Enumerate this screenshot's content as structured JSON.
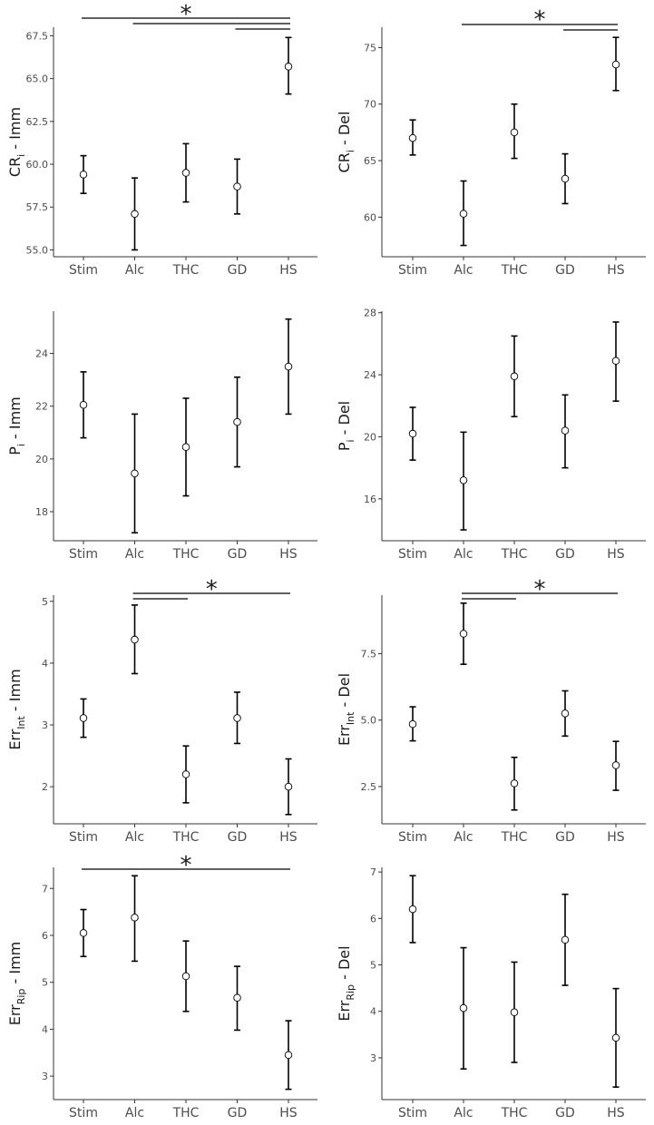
{
  "chart_data": [
    {
      "type": "scatter",
      "ylabel": {
        "main": "CR",
        "sub": "i",
        "suffix": " - Imm"
      },
      "categories": [
        "Stim",
        "Alc",
        "THC",
        "GD",
        "HS"
      ],
      "values": [
        59.4,
        57.1,
        59.5,
        58.7,
        65.7
      ],
      "lower": [
        58.3,
        55.0,
        57.8,
        57.1,
        64.1
      ],
      "upper": [
        60.5,
        59.2,
        61.2,
        60.3,
        67.4
      ],
      "ylim": [
        54.6,
        68.0
      ],
      "yticks": [
        55.0,
        57.5,
        60.0,
        62.5,
        65.0,
        67.5
      ],
      "ytick_labels": [
        "55.0",
        "57.5",
        "60.0",
        "62.5",
        "65.0",
        "67.5"
      ],
      "brackets": [
        [
          "Stim",
          "HS"
        ],
        [
          "Alc",
          "HS"
        ],
        [
          "GD",
          "HS"
        ]
      ],
      "significance_label": "*"
    },
    {
      "type": "scatter",
      "ylabel": {
        "main": "CR",
        "sub": "i",
        "suffix": " - Del"
      },
      "categories": [
        "Stim",
        "Alc",
        "THC",
        "GD",
        "HS"
      ],
      "values": [
        67.0,
        60.3,
        67.5,
        63.4,
        73.5
      ],
      "lower": [
        65.5,
        57.5,
        65.2,
        61.2,
        71.2
      ],
      "upper": [
        68.6,
        63.2,
        70.0,
        65.6,
        75.9
      ],
      "ylim": [
        56.5,
        76.8
      ],
      "yticks": [
        60,
        65,
        70,
        75
      ],
      "ytick_labels": [
        "60",
        "65",
        "70",
        "75"
      ],
      "brackets": [
        [
          "Alc",
          "HS"
        ],
        [
          "GD",
          "HS"
        ]
      ],
      "significance_label": "*"
    },
    {
      "type": "scatter",
      "ylabel": {
        "main": "P",
        "sub": "i",
        "suffix": " - Imm"
      },
      "categories": [
        "Stim",
        "Alc",
        "THC",
        "GD",
        "HS"
      ],
      "values": [
        22.05,
        19.45,
        20.45,
        21.4,
        23.5
      ],
      "lower": [
        20.8,
        17.2,
        18.6,
        19.7,
        21.7
      ],
      "upper": [
        23.3,
        21.7,
        22.3,
        23.1,
        25.3
      ],
      "ylim": [
        16.9,
        25.6
      ],
      "yticks": [
        18,
        20,
        22,
        24
      ],
      "ytick_labels": [
        "18",
        "20",
        "22",
        "24"
      ],
      "brackets": [],
      "significance_label": ""
    },
    {
      "type": "scatter",
      "ylabel": {
        "main": "P",
        "sub": "i",
        "suffix": " - Del"
      },
      "categories": [
        "Stim",
        "Alc",
        "THC",
        "GD",
        "HS"
      ],
      "values": [
        20.2,
        17.2,
        23.9,
        20.4,
        24.9
      ],
      "lower": [
        18.5,
        14.0,
        21.3,
        18.0,
        22.3
      ],
      "upper": [
        21.9,
        20.3,
        26.5,
        22.7,
        27.4
      ],
      "ylim": [
        13.3,
        28.1
      ],
      "yticks": [
        16,
        20,
        24,
        28
      ],
      "ytick_labels": [
        "16",
        "20",
        "24",
        "28"
      ],
      "brackets": [],
      "significance_label": ""
    },
    {
      "type": "scatter",
      "ylabel": {
        "main": "Err",
        "sub": "Int",
        "suffix": " - Imm"
      },
      "categories": [
        "Stim",
        "Alc",
        "THC",
        "GD",
        "HS"
      ],
      "values": [
        3.11,
        4.38,
        2.2,
        3.11,
        2.0
      ],
      "lower": [
        2.8,
        3.83,
        1.74,
        2.7,
        1.55
      ],
      "upper": [
        3.42,
        4.94,
        2.66,
        3.53,
        2.45
      ],
      "ylim": [
        1.4,
        5.1
      ],
      "yticks": [
        2,
        3,
        4,
        5
      ],
      "ytick_labels": [
        "2",
        "3",
        "4",
        "5"
      ],
      "brackets": [
        [
          "Alc",
          "HS"
        ],
        [
          "Alc",
          "THC"
        ]
      ],
      "significance_label": "*"
    },
    {
      "type": "scatter",
      "ylabel": {
        "main": "Err",
        "sub": "Int",
        "suffix": " - Del"
      },
      "categories": [
        "Stim",
        "Alc",
        "THC",
        "GD",
        "HS"
      ],
      "values": [
        4.85,
        8.25,
        2.62,
        5.25,
        3.3
      ],
      "lower": [
        4.22,
        7.1,
        1.62,
        4.4,
        2.36
      ],
      "upper": [
        5.5,
        9.4,
        3.6,
        6.1,
        4.2
      ],
      "ylim": [
        1.1,
        9.7
      ],
      "yticks": [
        2.5,
        5.0,
        7.5
      ],
      "ytick_labels": [
        "2.5",
        "5.0",
        "7.5"
      ],
      "brackets": [
        [
          "Alc",
          "HS"
        ],
        [
          "Alc",
          "THC"
        ]
      ],
      "significance_label": "*"
    },
    {
      "type": "scatter",
      "ylabel": {
        "main": "Err",
        "sub": "Rip",
        "suffix": " - Imm"
      },
      "categories": [
        "Stim",
        "Alc",
        "THC",
        "GD",
        "HS"
      ],
      "values": [
        6.05,
        6.38,
        5.13,
        4.67,
        3.45
      ],
      "lower": [
        5.55,
        5.45,
        4.38,
        3.98,
        2.72
      ],
      "upper": [
        6.55,
        7.27,
        5.88,
        5.34,
        4.18
      ],
      "ylim": [
        2.5,
        7.45
      ],
      "yticks": [
        3,
        4,
        5,
        6,
        7
      ],
      "ytick_labels": [
        "3",
        "4",
        "5",
        "6",
        "7"
      ],
      "brackets": [
        [
          "Stim",
          "HS"
        ]
      ],
      "significance_label": "*"
    },
    {
      "type": "scatter",
      "ylabel": {
        "main": "Err",
        "sub": "Rip",
        "suffix": " - Del"
      },
      "categories": [
        "Stim",
        "Alc",
        "THC",
        "GD",
        "HS"
      ],
      "values": [
        6.2,
        4.07,
        3.98,
        5.54,
        3.43
      ],
      "lower": [
        5.48,
        2.76,
        2.9,
        4.56,
        2.37
      ],
      "upper": [
        6.92,
        5.37,
        5.06,
        6.52,
        4.49
      ],
      "ylim": [
        2.1,
        7.1
      ],
      "yticks": [
        3,
        4,
        5,
        6,
        7
      ],
      "ytick_labels": [
        "3",
        "4",
        "5",
        "6",
        "7"
      ],
      "brackets": [],
      "significance_label": ""
    }
  ]
}
